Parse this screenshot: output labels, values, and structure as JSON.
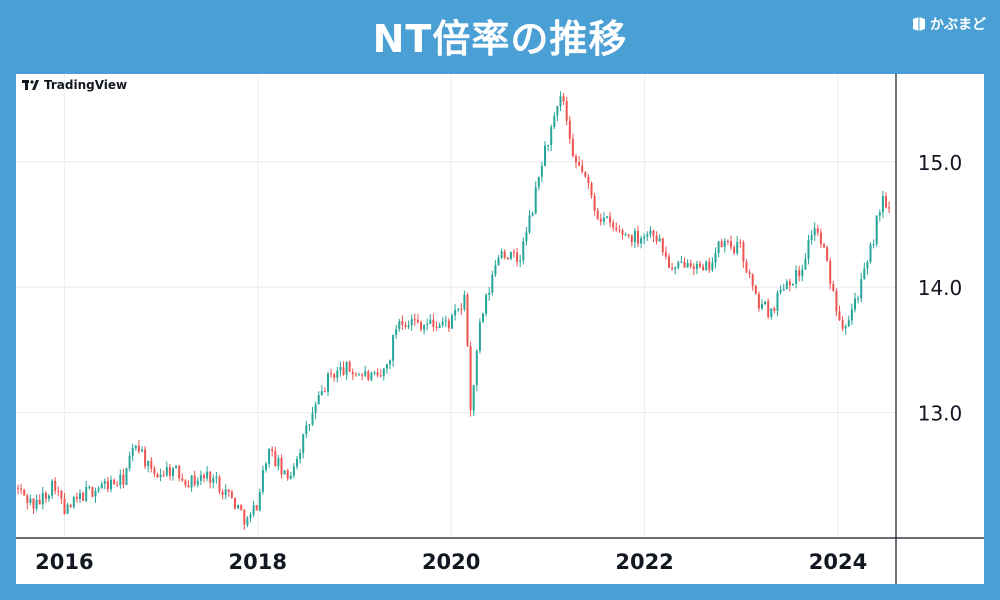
{
  "header": {
    "title": "NT倍率の推移",
    "brand": "かぶまど"
  },
  "watermark": "TradingView",
  "colors": {
    "background": "#4a9fd4",
    "up": "#26a69a",
    "down": "#ef5350",
    "grid": "#ececec"
  },
  "chart_data": {
    "type": "candlestick",
    "title": "NT倍率の推移",
    "x_ticks": [
      "2016",
      "2018",
      "2020",
      "2022",
      "2024"
    ],
    "y_ticks": [
      "13.0",
      "14.0",
      "15.0"
    ],
    "ylim": [
      12.0,
      15.7
    ],
    "xlim": [
      2015.5,
      2024.6
    ],
    "grid": true,
    "series": [
      {
        "points": [
          [
            2015.5,
            12.4
          ],
          [
            2015.7,
            12.25
          ],
          [
            2015.9,
            12.45
          ],
          [
            2016.0,
            12.2
          ],
          [
            2016.2,
            12.35
          ],
          [
            2016.4,
            12.42
          ],
          [
            2016.6,
            12.45
          ],
          [
            2016.75,
            12.78
          ],
          [
            2016.9,
            12.5
          ],
          [
            2017.1,
            12.55
          ],
          [
            2017.3,
            12.45
          ],
          [
            2017.5,
            12.5
          ],
          [
            2017.7,
            12.35
          ],
          [
            2017.9,
            12.12
          ],
          [
            2018.0,
            12.3
          ],
          [
            2018.1,
            12.7
          ],
          [
            2018.2,
            12.6
          ],
          [
            2018.3,
            12.45
          ],
          [
            2018.45,
            12.75
          ],
          [
            2018.6,
            13.05
          ],
          [
            2018.75,
            13.3
          ],
          [
            2018.9,
            13.35
          ],
          [
            2019.1,
            13.3
          ],
          [
            2019.25,
            13.25
          ],
          [
            2019.35,
            13.4
          ],
          [
            2019.45,
            13.75
          ],
          [
            2019.65,
            13.72
          ],
          [
            2019.85,
            13.7
          ],
          [
            2020.0,
            13.72
          ],
          [
            2020.15,
            13.9
          ],
          [
            2020.2,
            13.0
          ],
          [
            2020.3,
            13.7
          ],
          [
            2020.5,
            14.3
          ],
          [
            2020.7,
            14.2
          ],
          [
            2020.85,
            14.65
          ],
          [
            2020.95,
            15.05
          ],
          [
            2021.1,
            15.4
          ],
          [
            2021.15,
            15.55
          ],
          [
            2021.25,
            15.0
          ],
          [
            2021.35,
            14.95
          ],
          [
            2021.5,
            14.6
          ],
          [
            2021.7,
            14.45
          ],
          [
            2021.9,
            14.4
          ],
          [
            2022.1,
            14.45
          ],
          [
            2022.3,
            14.1
          ],
          [
            2022.45,
            14.25
          ],
          [
            2022.6,
            14.1
          ],
          [
            2022.8,
            14.35
          ],
          [
            2023.0,
            14.3
          ],
          [
            2023.15,
            13.9
          ],
          [
            2023.3,
            13.8
          ],
          [
            2023.45,
            14.05
          ],
          [
            2023.6,
            14.1
          ],
          [
            2023.75,
            14.5
          ],
          [
            2023.85,
            14.3
          ],
          [
            2023.95,
            13.95
          ],
          [
            2024.05,
            13.7
          ],
          [
            2024.15,
            13.85
          ],
          [
            2024.3,
            14.15
          ],
          [
            2024.45,
            14.7
          ],
          [
            2024.55,
            14.55
          ]
        ]
      }
    ]
  }
}
